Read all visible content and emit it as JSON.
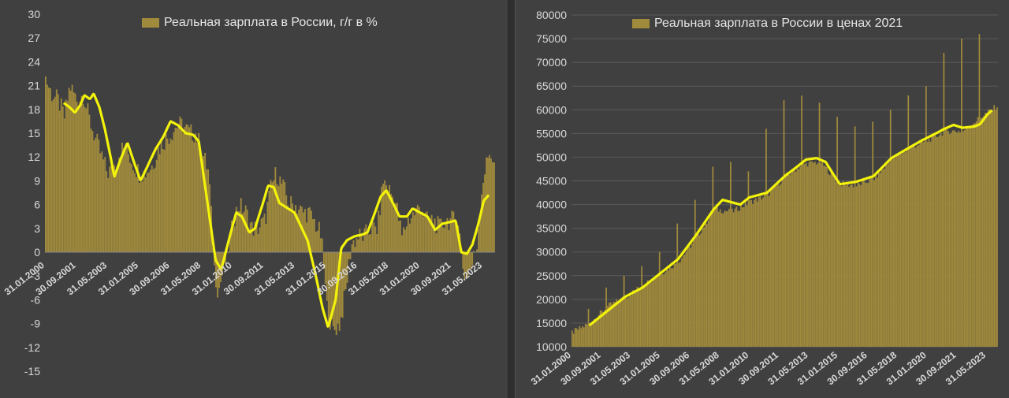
{
  "colors": {
    "background": "#404040",
    "bar": "#a08a3c",
    "line": "#f2f20a",
    "axis_text": "#d8d8d8",
    "grid": "#5a5a5a"
  },
  "chart_data": [
    {
      "type": "bar",
      "title": "",
      "legend": [
        "Реальная зарплата в России, г/г в %"
      ],
      "ylim": [
        -15,
        30
      ],
      "yticks": [
        30,
        27,
        24,
        21,
        18,
        15,
        12,
        9,
        6,
        3,
        0,
        -3,
        -6,
        -9,
        -12,
        -15
      ],
      "xticks": [
        "31.01.2000",
        "30.09.2001",
        "31.05.2003",
        "31.01.2005",
        "30.09.2006",
        "31.05.2008",
        "31.01.2010",
        "30.09.2011",
        "31.05.2013",
        "31.01.2015",
        "30.09.2016",
        "31.05.2018",
        "31.01.2020",
        "30.09.2021",
        "31.05.2023"
      ],
      "legend_placement": "top-center",
      "series": [
        {
          "name": "Реальная зарплата в России, г/г в %",
          "kind": "bar",
          "x_start": "2000-01",
          "frequency": "monthly",
          "anchors_year_value": [
            [
              2000.0,
              22
            ],
            [
              2000.3,
              20
            ],
            [
              2000.7,
              19
            ],
            [
              2001.0,
              17
            ],
            [
              2001.3,
              21
            ],
            [
              2001.7,
              19
            ],
            [
              2002.0,
              20
            ],
            [
              2002.3,
              17
            ],
            [
              2002.7,
              14
            ],
            [
              2003.0,
              12
            ],
            [
              2003.3,
              10
            ],
            [
              2003.7,
              11
            ],
            [
              2004.0,
              13
            ],
            [
              2004.3,
              13
            ],
            [
              2004.7,
              11
            ],
            [
              2005.0,
              10
            ],
            [
              2005.3,
              10
            ],
            [
              2005.7,
              11
            ],
            [
              2006.0,
              13
            ],
            [
              2006.3,
              14
            ],
            [
              2006.7,
              15
            ],
            [
              2007.0,
              16
            ],
            [
              2007.3,
              16
            ],
            [
              2007.7,
              15
            ],
            [
              2008.0,
              15
            ],
            [
              2008.3,
              13
            ],
            [
              2008.7,
              10
            ],
            [
              2009.0,
              -2
            ],
            [
              2009.2,
              -5
            ],
            [
              2009.5,
              -2
            ],
            [
              2009.8,
              1
            ],
            [
              2010.0,
              4
            ],
            [
              2010.3,
              6
            ],
            [
              2010.7,
              5
            ],
            [
              2011.0,
              3
            ],
            [
              2011.3,
              3
            ],
            [
              2011.7,
              4
            ],
            [
              2012.0,
              8
            ],
            [
              2012.3,
              10
            ],
            [
              2012.7,
              8
            ],
            [
              2013.0,
              6
            ],
            [
              2013.3,
              6
            ],
            [
              2013.7,
              5
            ],
            [
              2014.0,
              5
            ],
            [
              2014.3,
              4
            ],
            [
              2014.7,
              2
            ],
            [
              2015.0,
              -7
            ],
            [
              2015.3,
              -10
            ],
            [
              2015.7,
              -9
            ],
            [
              2016.0,
              -5
            ],
            [
              2016.3,
              1
            ],
            [
              2016.7,
              2
            ],
            [
              2017.0,
              2
            ],
            [
              2017.3,
              3
            ],
            [
              2017.7,
              3
            ],
            [
              2018.0,
              9
            ],
            [
              2018.3,
              8
            ],
            [
              2018.7,
              6
            ],
            [
              2019.0,
              2
            ],
            [
              2019.3,
              4
            ],
            [
              2019.7,
              5
            ],
            [
              2020.0,
              6
            ],
            [
              2020.3,
              4
            ],
            [
              2020.7,
              4
            ],
            [
              2021.0,
              3
            ],
            [
              2021.3,
              4
            ],
            [
              2021.7,
              4
            ],
            [
              2022.0,
              4
            ],
            [
              2022.3,
              -3
            ],
            [
              2022.7,
              -2
            ],
            [
              2023.0,
              1
            ],
            [
              2023.3,
              9
            ],
            [
              2023.7,
              13
            ],
            [
              2024.0,
              10
            ]
          ]
        },
        {
          "name": "",
          "kind": "line",
          "anchors_year_value": [
            [
              2001.0,
              18.8
            ],
            [
              2001.3,
              18.3
            ],
            [
              2001.6,
              17.6
            ],
            [
              2001.9,
              18.6
            ],
            [
              2002.1,
              19.8
            ],
            [
              2002.4,
              19.3
            ],
            [
              2002.6,
              20.0
            ],
            [
              2002.9,
              18.3
            ],
            [
              2003.2,
              15.5
            ],
            [
              2003.5,
              12.0
            ],
            [
              2003.7,
              9.5
            ],
            [
              2004.0,
              11.5
            ],
            [
              2004.4,
              13.8
            ],
            [
              2004.8,
              11.0
            ],
            [
              2005.1,
              9.0
            ],
            [
              2005.5,
              11.0
            ],
            [
              2005.9,
              13.0
            ],
            [
              2006.3,
              14.5
            ],
            [
              2006.7,
              16.5
            ],
            [
              2007.1,
              16.0
            ],
            [
              2007.5,
              15.0
            ],
            [
              2007.9,
              14.8
            ],
            [
              2008.2,
              14.0
            ],
            [
              2008.5,
              9.0
            ],
            [
              2008.8,
              4.0
            ],
            [
              2009.1,
              -1.0
            ],
            [
              2009.4,
              -2.2
            ],
            [
              2009.8,
              1.5
            ],
            [
              2010.2,
              5.0
            ],
            [
              2010.5,
              4.5
            ],
            [
              2010.9,
              2.5
            ],
            [
              2011.2,
              3.0
            ],
            [
              2011.6,
              6.0
            ],
            [
              2011.9,
              8.4
            ],
            [
              2012.2,
              8.2
            ],
            [
              2012.5,
              6.2
            ],
            [
              2012.9,
              5.6
            ],
            [
              2013.3,
              5.0
            ],
            [
              2013.7,
              3.0
            ],
            [
              2014.0,
              1.5
            ],
            [
              2014.4,
              -2.5
            ],
            [
              2014.8,
              -7.0
            ],
            [
              2015.1,
              -9.5
            ],
            [
              2015.5,
              -6.0
            ],
            [
              2015.8,
              0.5
            ],
            [
              2016.1,
              1.5
            ],
            [
              2016.5,
              2.0
            ],
            [
              2016.9,
              2.2
            ],
            [
              2017.2,
              2.5
            ],
            [
              2017.6,
              5.0
            ],
            [
              2017.9,
              7.0
            ],
            [
              2018.2,
              7.8
            ],
            [
              2018.6,
              6.0
            ],
            [
              2018.9,
              4.5
            ],
            [
              2019.3,
              4.5
            ],
            [
              2019.6,
              5.5
            ],
            [
              2020.0,
              5.0
            ],
            [
              2020.4,
              4.5
            ],
            [
              2020.8,
              2.8
            ],
            [
              2021.2,
              3.6
            ],
            [
              2021.6,
              3.8
            ],
            [
              2021.9,
              4.0
            ],
            [
              2022.2,
              0.0
            ],
            [
              2022.5,
              -0.2
            ],
            [
              2022.8,
              1.0
            ],
            [
              2023.1,
              3.5
            ],
            [
              2023.4,
              6.5
            ],
            [
              2023.7,
              7.3
            ]
          ]
        }
      ]
    },
    {
      "type": "bar",
      "title": "",
      "legend": [
        "Реальная зарплата в России в ценах 2021"
      ],
      "ylim": [
        10000,
        80000
      ],
      "yticks": [
        80000,
        75000,
        70000,
        65000,
        60000,
        55000,
        50000,
        45000,
        40000,
        35000,
        30000,
        25000,
        20000,
        15000,
        10000
      ],
      "xticks": [
        "31.01.2000",
        "30.09.2001",
        "31.05.2003",
        "31.01.2005",
        "30.09.2006",
        "31.05.2008",
        "31.01.2010",
        "30.09.2011",
        "31.05.2013",
        "31.01.2015",
        "30.09.2016",
        "31.05.2018",
        "31.01.2020",
        "30.09.2021",
        "31.05.2023"
      ],
      "legend_placement": "top-center",
      "series": [
        {
          "name": "Реальная зарплата в России в ценах 2021",
          "kind": "bar",
          "x_start": "2000-01",
          "frequency": "monthly",
          "anchors_year_value": [
            [
              2000.0,
              13000
            ],
            [
              2001.0,
              15000
            ],
            [
              2002.0,
              18500
            ],
            [
              2003.0,
              20500
            ],
            [
              2004.0,
              23000
            ],
            [
              2005.0,
              25500
            ],
            [
              2006.0,
              28000
            ],
            [
              2007.0,
              33000
            ],
            [
              2008.0,
              39000
            ],
            [
              2009.0,
              38500
            ],
            [
              2010.0,
              40500
            ],
            [
              2011.0,
              42000
            ],
            [
              2012.0,
              46000
            ],
            [
              2013.0,
              48500
            ],
            [
              2014.0,
              49000
            ],
            [
              2015.0,
              44500
            ],
            [
              2016.0,
              44000
            ],
            [
              2017.0,
              45500
            ],
            [
              2018.0,
              49500
            ],
            [
              2019.0,
              52000
            ],
            [
              2020.0,
              53500
            ],
            [
              2021.0,
              55500
            ],
            [
              2022.0,
              55500
            ],
            [
              2023.0,
              58500
            ],
            [
              2024.0,
              61000
            ]
          ],
          "december_spikes": [
            [
              2000.95,
              18000
            ],
            [
              2001.95,
              22500
            ],
            [
              2002.95,
              25000
            ],
            [
              2003.95,
              27000
            ],
            [
              2004.95,
              30000
            ],
            [
              2005.95,
              36000
            ],
            [
              2006.95,
              41000
            ],
            [
              2007.95,
              48000
            ],
            [
              2008.95,
              49000
            ],
            [
              2009.95,
              47000
            ],
            [
              2010.95,
              56000
            ],
            [
              2011.95,
              62000
            ],
            [
              2012.95,
              63000
            ],
            [
              2013.95,
              61500
            ],
            [
              2014.95,
              58500
            ],
            [
              2015.95,
              56500
            ],
            [
              2016.95,
              57500
            ],
            [
              2017.95,
              60000
            ],
            [
              2018.95,
              63000
            ],
            [
              2019.95,
              65000
            ],
            [
              2020.95,
              72000
            ],
            [
              2021.95,
              75000
            ],
            [
              2022.95,
              76000
            ]
          ]
        },
        {
          "name": "",
          "kind": "line",
          "anchors_year_value": [
            [
              2001.0,
              14500
            ],
            [
              2002.0,
              17500
            ],
            [
              2003.0,
              20500
            ],
            [
              2004.0,
              22500
            ],
            [
              2005.0,
              25500
            ],
            [
              2006.0,
              28500
            ],
            [
              2007.0,
              33500
            ],
            [
              2008.0,
              39000
            ],
            [
              2008.5,
              41000
            ],
            [
              2009.0,
              40500
            ],
            [
              2009.5,
              40000
            ],
            [
              2010.0,
              41500
            ],
            [
              2011.0,
              42500
            ],
            [
              2012.0,
              46000
            ],
            [
              2012.7,
              48000
            ],
            [
              2013.2,
              49500
            ],
            [
              2013.8,
              49800
            ],
            [
              2014.3,
              49000
            ],
            [
              2014.8,
              46000
            ],
            [
              2015.1,
              44300
            ],
            [
              2016.0,
              44800
            ],
            [
              2017.0,
              46000
            ],
            [
              2018.0,
              49800
            ],
            [
              2019.0,
              52000
            ],
            [
              2019.7,
              53500
            ],
            [
              2020.5,
              55000
            ],
            [
              2021.0,
              56000
            ],
            [
              2021.5,
              56800
            ],
            [
              2022.0,
              56200
            ],
            [
              2022.7,
              56500
            ],
            [
              2023.0,
              57000
            ],
            [
              2023.4,
              59000
            ],
            [
              2023.7,
              60000
            ]
          ]
        }
      ]
    }
  ]
}
